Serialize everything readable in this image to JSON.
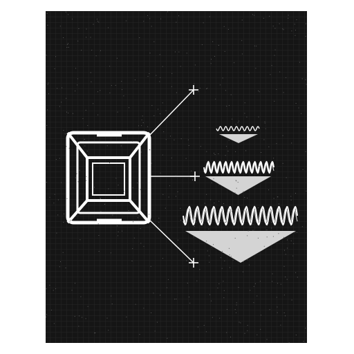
{
  "diagram": {
    "background_color": "#151515",
    "ink_color": "#ffffff",
    "speckle_color": "#d4d4d4",
    "frame_icon": "square-frame-icon",
    "crosshair_icon": "crosshair-icon",
    "waves": [
      {
        "level": "small",
        "amplitude": 3,
        "cycles": 8
      },
      {
        "level": "medium",
        "amplitude": 8,
        "cycles": 12
      },
      {
        "level": "large",
        "amplitude": 13,
        "cycles": 14
      }
    ]
  }
}
